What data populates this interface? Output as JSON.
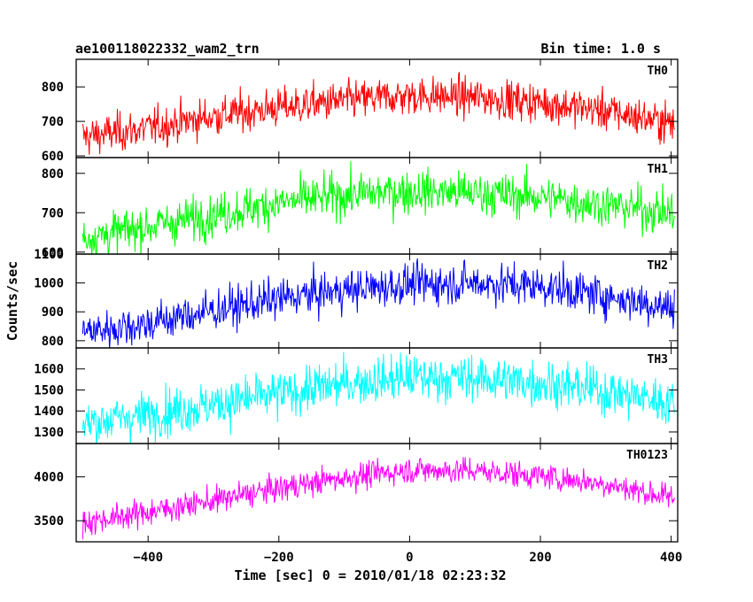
{
  "header": {
    "title": "ae100118022332_wam2_trn",
    "bin_time": "Bin time: 1.0 s"
  },
  "chart_data": {
    "type": "line",
    "xlabel": "Time [sec] 0 = 2010/01/18 02:23:32",
    "ylabel": "Counts/sec",
    "xlim": [
      -510,
      410
    ],
    "x_ticks": [
      -400,
      -200,
      0,
      200,
      400
    ],
    "x_tick_labels": [
      "−400",
      "−200",
      "0",
      "200",
      "400"
    ],
    "x_range": [
      -500,
      405
    ],
    "bin_time_s": 1.0,
    "panels": [
      {
        "name": "TH0",
        "color": "#ff0000",
        "ylim": [
          595,
          880
        ],
        "y_ticks": [
          600,
          700,
          800
        ],
        "trend": [
          [
            -500,
            655
          ],
          [
            -400,
            680
          ],
          [
            -300,
            715
          ],
          [
            -200,
            740
          ],
          [
            -100,
            760
          ],
          [
            0,
            775
          ],
          [
            100,
            770
          ],
          [
            200,
            755
          ],
          [
            300,
            730
          ],
          [
            400,
            695
          ]
        ],
        "noise": 28
      },
      {
        "name": "TH1",
        "color": "#00ff00",
        "ylim": [
          595,
          840
        ],
        "y_ticks": [
          600,
          700,
          800
        ],
        "trend": [
          [
            -500,
            635
          ],
          [
            -400,
            665
          ],
          [
            -300,
            695
          ],
          [
            -200,
            725
          ],
          [
            -100,
            745
          ],
          [
            0,
            755
          ],
          [
            100,
            750
          ],
          [
            200,
            740
          ],
          [
            300,
            720
          ],
          [
            400,
            700
          ]
        ],
        "noise": 27
      },
      {
        "name": "TH2",
        "color": "#0000ff",
        "ylim": [
          775,
          1100
        ],
        "y_ticks": [
          800,
          900,
          1000,
          1100
        ],
        "trend": [
          [
            -500,
            830
          ],
          [
            -400,
            860
          ],
          [
            -300,
            905
          ],
          [
            -200,
            945
          ],
          [
            -100,
            975
          ],
          [
            0,
            995
          ],
          [
            100,
            1000
          ],
          [
            200,
            990
          ],
          [
            300,
            955
          ],
          [
            400,
            915
          ]
        ],
        "noise": 35
      },
      {
        "name": "TH3",
        "color": "#00ffff",
        "ylim": [
          1245,
          1700
        ],
        "y_ticks": [
          1300,
          1400,
          1500,
          1600
        ],
        "trend": [
          [
            -500,
            1340
          ],
          [
            -400,
            1385
          ],
          [
            -300,
            1430
          ],
          [
            -200,
            1480
          ],
          [
            -100,
            1530
          ],
          [
            0,
            1560
          ],
          [
            100,
            1555
          ],
          [
            200,
            1535
          ],
          [
            300,
            1495
          ],
          [
            400,
            1440
          ]
        ],
        "noise": 55
      },
      {
        "name": "TH0123",
        "color": "#ff00ff",
        "ylim": [
          3260,
          4380
        ],
        "y_ticks": [
          3500,
          4000
        ],
        "trend": [
          [
            -500,
            3480
          ],
          [
            -400,
            3600
          ],
          [
            -300,
            3730
          ],
          [
            -200,
            3870
          ],
          [
            -100,
            3990
          ],
          [
            0,
            4080
          ],
          [
            100,
            4070
          ],
          [
            200,
            4010
          ],
          [
            300,
            3920
          ],
          [
            400,
            3760
          ]
        ],
        "noise": 75
      }
    ]
  }
}
